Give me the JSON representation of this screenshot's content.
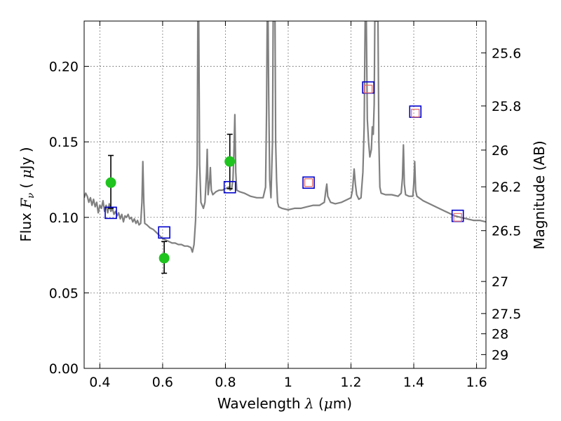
{
  "chart_data": {
    "type": "line",
    "xlabel": "Wavelength  λ (μm)",
    "xlabel_parts": [
      "Wavelength  ",
      "λ",
      " (",
      "μ",
      "m)"
    ],
    "ylabel": "Flux  Fν  ( μJy )",
    "ylabel_parts": [
      "Flux  ",
      "F",
      "ν",
      "  ( ",
      "μ",
      "Jy )"
    ],
    "y2label": "Magnitude (AB)",
    "xlim": [
      0.35,
      1.63
    ],
    "ylim": [
      0,
      0.23
    ],
    "grid": true,
    "x_ticks": [
      0.4,
      0.6,
      0.8,
      1.0,
      1.2,
      1.4,
      1.6
    ],
    "x_tick_labels": [
      "0.4",
      "0.6",
      "0.8",
      "1",
      "1.2",
      "1.4",
      "1.6"
    ],
    "y_ticks": [
      0.0,
      0.05,
      0.1,
      0.15,
      0.2
    ],
    "y_tick_labels": [
      "0.00",
      "0.05",
      "0.10",
      "0.15",
      "0.20"
    ],
    "y2_ticks": [
      25.6,
      25.8,
      26,
      26.2,
      26.5,
      27,
      27.5,
      28,
      29
    ],
    "y2_tick_labels": [
      "25.6",
      "25.8",
      "26",
      "26.2",
      "26.5",
      "27",
      "27.5",
      "28",
      "29"
    ],
    "colors": {
      "spectrum": "#808080",
      "observed": "#1fc41f",
      "model_band": "#0000cc",
      "model_fit": "#e06666"
    },
    "spectrum": [
      [
        0.35,
        0.113
      ],
      [
        0.355,
        0.116
      ],
      [
        0.36,
        0.114
      ],
      [
        0.365,
        0.11
      ],
      [
        0.37,
        0.113
      ],
      [
        0.375,
        0.108
      ],
      [
        0.38,
        0.112
      ],
      [
        0.385,
        0.107
      ],
      [
        0.39,
        0.11
      ],
      [
        0.395,
        0.103
      ],
      [
        0.4,
        0.108
      ],
      [
        0.405,
        0.106
      ],
      [
        0.41,
        0.111
      ],
      [
        0.415,
        0.104
      ],
      [
        0.42,
        0.108
      ],
      [
        0.425,
        0.103
      ],
      [
        0.43,
        0.109
      ],
      [
        0.435,
        0.104
      ],
      [
        0.44,
        0.106
      ],
      [
        0.445,
        0.102
      ],
      [
        0.45,
        0.104
      ],
      [
        0.455,
        0.101
      ],
      [
        0.46,
        0.103
      ],
      [
        0.465,
        0.099
      ],
      [
        0.47,
        0.102
      ],
      [
        0.475,
        0.097
      ],
      [
        0.48,
        0.101
      ],
      [
        0.485,
        0.1
      ],
      [
        0.49,
        0.102
      ],
      [
        0.495,
        0.099
      ],
      [
        0.5,
        0.1
      ],
      [
        0.505,
        0.097
      ],
      [
        0.51,
        0.099
      ],
      [
        0.515,
        0.096
      ],
      [
        0.52,
        0.098
      ],
      [
        0.525,
        0.095
      ],
      [
        0.53,
        0.096
      ],
      [
        0.534,
        0.11
      ],
      [
        0.537,
        0.137
      ],
      [
        0.54,
        0.11
      ],
      [
        0.543,
        0.096
      ],
      [
        0.55,
        0.095
      ],
      [
        0.56,
        0.093
      ],
      [
        0.57,
        0.092
      ],
      [
        0.58,
        0.09
      ],
      [
        0.59,
        0.088
      ],
      [
        0.6,
        0.086
      ],
      [
        0.61,
        0.085
      ],
      [
        0.62,
        0.084
      ],
      [
        0.63,
        0.083
      ],
      [
        0.64,
        0.083
      ],
      [
        0.65,
        0.082
      ],
      [
        0.66,
        0.082
      ],
      [
        0.67,
        0.081
      ],
      [
        0.68,
        0.081
      ],
      [
        0.69,
        0.08
      ],
      [
        0.695,
        0.077
      ],
      [
        0.7,
        0.082
      ],
      [
        0.705,
        0.098
      ],
      [
        0.71,
        0.135
      ],
      [
        0.712,
        0.23
      ],
      [
        0.715,
        0.23
      ],
      [
        0.718,
        0.135
      ],
      [
        0.722,
        0.11
      ],
      [
        0.73,
        0.106
      ],
      [
        0.735,
        0.11
      ],
      [
        0.74,
        0.13
      ],
      [
        0.742,
        0.145
      ],
      [
        0.745,
        0.115
      ],
      [
        0.75,
        0.125
      ],
      [
        0.752,
        0.133
      ],
      [
        0.755,
        0.118
      ],
      [
        0.76,
        0.115
      ],
      [
        0.77,
        0.117
      ],
      [
        0.78,
        0.118
      ],
      [
        0.79,
        0.118
      ],
      [
        0.8,
        0.119
      ],
      [
        0.81,
        0.12
      ],
      [
        0.815,
        0.118
      ],
      [
        0.82,
        0.119
      ],
      [
        0.824,
        0.125
      ],
      [
        0.827,
        0.142
      ],
      [
        0.83,
        0.168
      ],
      [
        0.833,
        0.13
      ],
      [
        0.836,
        0.118
      ],
      [
        0.845,
        0.117
      ],
      [
        0.86,
        0.116
      ],
      [
        0.88,
        0.114
      ],
      [
        0.9,
        0.113
      ],
      [
        0.92,
        0.113
      ],
      [
        0.928,
        0.12
      ],
      [
        0.931,
        0.17
      ],
      [
        0.933,
        0.23
      ],
      [
        0.936,
        0.23
      ],
      [
        0.938,
        0.18
      ],
      [
        0.941,
        0.125
      ],
      [
        0.945,
        0.113
      ],
      [
        0.95,
        0.15
      ],
      [
        0.952,
        0.23
      ],
      [
        0.958,
        0.23
      ],
      [
        0.96,
        0.15
      ],
      [
        0.963,
        0.125
      ],
      [
        0.966,
        0.11
      ],
      [
        0.97,
        0.107
      ],
      [
        0.98,
        0.106
      ],
      [
        1.0,
        0.105
      ],
      [
        1.02,
        0.106
      ],
      [
        1.04,
        0.106
      ],
      [
        1.06,
        0.107
      ],
      [
        1.08,
        0.108
      ],
      [
        1.1,
        0.108
      ],
      [
        1.115,
        0.11
      ],
      [
        1.12,
        0.118
      ],
      [
        1.123,
        0.122
      ],
      [
        1.126,
        0.114
      ],
      [
        1.135,
        0.11
      ],
      [
        1.15,
        0.109
      ],
      [
        1.17,
        0.11
      ],
      [
        1.19,
        0.112
      ],
      [
        1.2,
        0.113
      ],
      [
        1.205,
        0.118
      ],
      [
        1.21,
        0.132
      ],
      [
        1.214,
        0.122
      ],
      [
        1.218,
        0.115
      ],
      [
        1.225,
        0.112
      ],
      [
        1.232,
        0.113
      ],
      [
        1.238,
        0.13
      ],
      [
        1.242,
        0.16
      ],
      [
        1.245,
        0.23
      ],
      [
        1.249,
        0.23
      ],
      [
        1.252,
        0.165
      ],
      [
        1.256,
        0.15
      ],
      [
        1.26,
        0.14
      ],
      [
        1.265,
        0.145
      ],
      [
        1.268,
        0.16
      ],
      [
        1.271,
        0.155
      ],
      [
        1.274,
        0.175
      ],
      [
        1.276,
        0.23
      ],
      [
        1.284,
        0.23
      ],
      [
        1.286,
        0.23
      ],
      [
        1.289,
        0.15
      ],
      [
        1.292,
        0.12
      ],
      [
        1.296,
        0.116
      ],
      [
        1.31,
        0.115
      ],
      [
        1.33,
        0.115
      ],
      [
        1.35,
        0.114
      ],
      [
        1.36,
        0.116
      ],
      [
        1.364,
        0.126
      ],
      [
        1.367,
        0.148
      ],
      [
        1.37,
        0.122
      ],
      [
        1.374,
        0.115
      ],
      [
        1.385,
        0.114
      ],
      [
        1.397,
        0.114
      ],
      [
        1.4,
        0.122
      ],
      [
        1.403,
        0.137
      ],
      [
        1.406,
        0.118
      ],
      [
        1.41,
        0.114
      ],
      [
        1.43,
        0.111
      ],
      [
        1.45,
        0.109
      ],
      [
        1.47,
        0.107
      ],
      [
        1.49,
        0.105
      ],
      [
        1.51,
        0.103
      ],
      [
        1.53,
        0.101
      ],
      [
        1.55,
        0.1
      ],
      [
        1.57,
        0.099
      ],
      [
        1.59,
        0.098
      ],
      [
        1.61,
        0.098
      ],
      [
        1.63,
        0.097
      ]
    ],
    "observed": [
      {
        "x": 0.435,
        "y": 0.123,
        "err_hi": 0.141,
        "err_lo": 0.106
      },
      {
        "x": 0.605,
        "y": 0.073,
        "err_hi": 0.084,
        "err_lo": 0.063
      },
      {
        "x": 0.814,
        "y": 0.137,
        "err_hi": 0.155,
        "err_lo": 0.119
      }
    ],
    "model_band": [
      {
        "x": 0.435,
        "y": 0.103
      },
      {
        "x": 0.605,
        "y": 0.09
      },
      {
        "x": 0.814,
        "y": 0.12
      },
      {
        "x": 1.065,
        "y": 0.123
      },
      {
        "x": 1.255,
        "y": 0.186
      },
      {
        "x": 1.405,
        "y": 0.17
      },
      {
        "x": 1.54,
        "y": 0.101
      }
    ],
    "model_fit": [
      {
        "x": 1.065,
        "y": 0.123
      },
      {
        "x": 1.255,
        "y": 0.185
      },
      {
        "x": 1.405,
        "y": 0.169
      },
      {
        "x": 1.54,
        "y": 0.1
      }
    ]
  }
}
